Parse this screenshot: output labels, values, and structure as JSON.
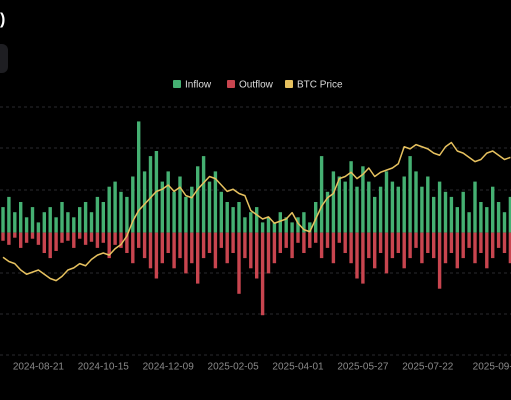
{
  "chart_data": {
    "type": "bar",
    "title": ")",
    "categories": [
      null,
      null,
      null,
      null,
      null,
      null,
      "2024-08-21",
      null,
      null,
      null,
      null,
      null,
      null,
      null,
      null,
      null,
      null,
      "2024-10-15",
      null,
      null,
      null,
      null,
      null,
      null,
      null,
      null,
      null,
      null,
      "2024-12-09",
      null,
      null,
      null,
      null,
      null,
      null,
      null,
      null,
      null,
      null,
      "2025-02-05",
      null,
      null,
      null,
      null,
      null,
      null,
      null,
      null,
      null,
      null,
      "2025-04-01",
      null,
      null,
      null,
      null,
      null,
      null,
      null,
      null,
      null,
      null,
      "2025-05-27",
      null,
      null,
      null,
      null,
      null,
      null,
      null,
      null,
      null,
      null,
      "2025-07-22",
      null,
      null,
      null,
      null,
      null,
      null,
      null,
      null,
      null,
      null,
      "2025-09-",
      null,
      null,
      null
    ],
    "series": [
      {
        "name": "Inflow",
        "color": "#45b072",
        "values": [
          2500,
          3500,
          2000,
          3000,
          1500,
          2500,
          1000,
          2000,
          2500,
          1500,
          3000,
          2000,
          1500,
          2500,
          3000,
          2000,
          3500,
          3000,
          4500,
          5000,
          4000,
          3500,
          5500,
          10900,
          6000,
          7500,
          8000,
          5000,
          6000,
          4000,
          5500,
          3500,
          4500,
          6500,
          7500,
          5000,
          6000,
          4000,
          3000,
          2500,
          3000,
          1500,
          2000,
          2500,
          1000,
          1500,
          1000,
          2000,
          1500,
          1000,
          1500,
          2000,
          1000,
          3000,
          7500,
          4000,
          6000,
          5500,
          5000,
          7000,
          4500,
          6500,
          5000,
          3500,
          4500,
          6000,
          5000,
          4500,
          5500,
          7500,
          6000,
          4500,
          5500,
          3500,
          5000,
          4000,
          3500,
          2500,
          4000,
          2000,
          5000,
          3000,
          2500,
          4500,
          3000,
          2000,
          3500
        ]
      },
      {
        "name": "Outflow",
        "color": "#c8454f",
        "values": [
          -800,
          -1200,
          -500,
          -1500,
          -1000,
          -600,
          -1200,
          -2000,
          -2500,
          -1800,
          -1000,
          -800,
          -1500,
          -600,
          -1200,
          -900,
          -1500,
          -1000,
          -2500,
          -1200,
          -1500,
          -2000,
          -3000,
          -1500,
          -2500,
          -3500,
          -4500,
          -3000,
          -2000,
          -3500,
          -2500,
          -4000,
          -3000,
          -5000,
          -2500,
          -2000,
          -3500,
          -1500,
          -3000,
          -2000,
          -6000,
          -2500,
          -3500,
          -4500,
          -8100,
          -4000,
          -3000,
          -2000,
          -1500,
          -2500,
          -1000,
          -2000,
          -1500,
          -1000,
          -2500,
          -1500,
          -3000,
          -1000,
          -2000,
          -3000,
          -4500,
          -5000,
          -2500,
          -3500,
          -2000,
          -4000,
          -2500,
          -2000,
          -3500,
          -2500,
          -1500,
          -3000,
          -2000,
          -2500,
          -5500,
          -3000,
          -2000,
          -3500,
          -2500,
          -1500,
          -3000,
          -2000,
          -3500,
          -2500,
          -1500,
          -2000,
          -3000
        ]
      },
      {
        "name": "BTC Price",
        "color": "#e6c15f",
        "type": "line",
        "axis": "y2",
        "values": [
          66000,
          64000,
          63000,
          60000,
          58000,
          59000,
          60000,
          58000,
          56000,
          55000,
          57000,
          60000,
          61000,
          63000,
          62000,
          65000,
          67000,
          68000,
          67000,
          70000,
          72000,
          76000,
          83000,
          88000,
          91000,
          94000,
          97000,
          98000,
          100000,
          97000,
          99000,
          95000,
          94000,
          98000,
          101000,
          104000,
          103000,
          100000,
          97000,
          98000,
          96000,
          95000,
          88000,
          86000,
          84000,
          85000,
          82000,
          83000,
          84000,
          87000,
          82000,
          79000,
          78000,
          84000,
          90000,
          94000,
          96000,
          103000,
          104000,
          106000,
          103000,
          105000,
          108000,
          104000,
          106000,
          107000,
          108000,
          110000,
          118000,
          117000,
          119000,
          118000,
          117000,
          115000,
          114000,
          118000,
          120000,
          116000,
          115000,
          113000,
          111000,
          112000,
          115000,
          116000,
          114000,
          112000,
          113000
        ]
      }
    ],
    "ylim": [
      -12000,
      13000
    ],
    "y2lim": [
      20000,
      140000
    ]
  }
}
